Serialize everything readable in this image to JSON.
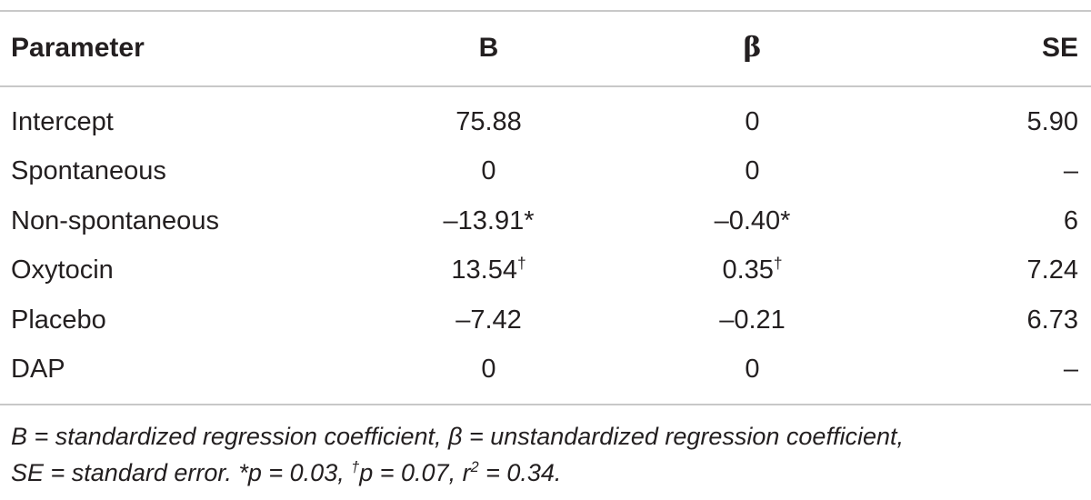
{
  "table": {
    "headers": {
      "parameter": "Parameter",
      "b": "B",
      "beta": "β",
      "se": "SE"
    },
    "rows": [
      {
        "parameter": "Intercept",
        "b": "75.88",
        "b_mark": "",
        "beta": "0",
        "beta_mark": "",
        "se": "5.90"
      },
      {
        "parameter": "Spontaneous",
        "b": "0",
        "b_mark": "",
        "beta": "0",
        "beta_mark": "",
        "se": "–"
      },
      {
        "parameter": "Non-spontaneous",
        "b": "–13.91",
        "b_mark": "*",
        "beta": "–0.40",
        "beta_mark": "*",
        "se": "6"
      },
      {
        "parameter": "Oxytocin",
        "b": "13.54",
        "b_mark": "†",
        "beta": "0.35",
        "beta_mark": "†",
        "se": "7.24"
      },
      {
        "parameter": "Placebo",
        "b": "–7.42",
        "b_mark": "",
        "beta": "–0.21",
        "beta_mark": "",
        "se": "6.73"
      },
      {
        "parameter": "DAP",
        "b": "0",
        "b_mark": "",
        "beta": "0",
        "beta_mark": "",
        "se": "–"
      }
    ]
  },
  "footnote": {
    "line1": "B = standardized regression coefficient, β = unstandardized regression coefficient,",
    "line2_a": "SE = standard error. *p = 0.03, ",
    "dagger": "†",
    "line2_b": "p = 0.07, r",
    "r_exp": "2",
    "line2_c": " = 0.34."
  }
}
